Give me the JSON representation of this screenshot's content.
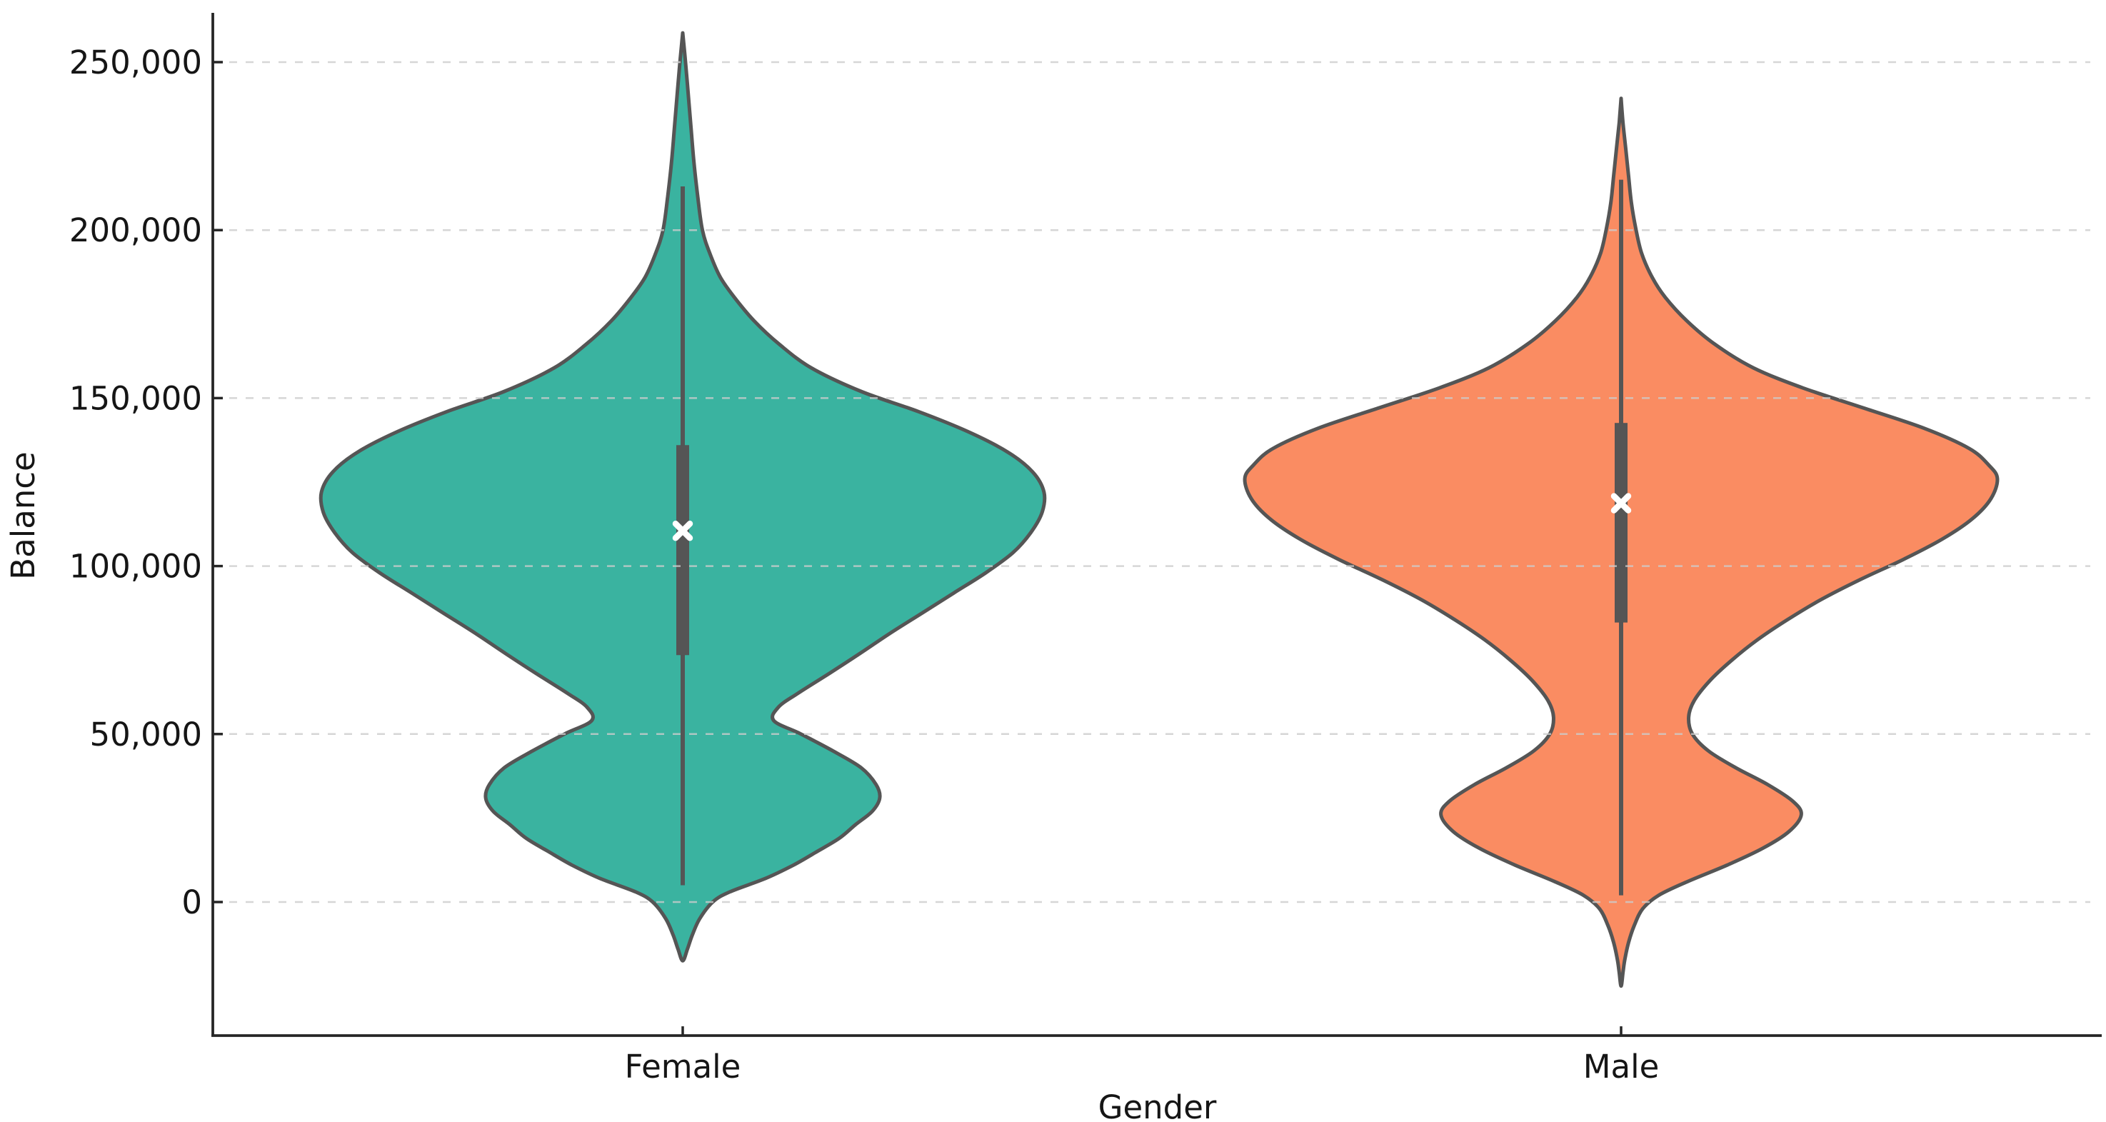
{
  "figure": {
    "background": "#ffffff",
    "axis_color": "#262626",
    "text_color": "#151515",
    "grid_color": "#cccccc"
  },
  "chart_data": {
    "type": "violin",
    "title": "",
    "xlabel": "Gender",
    "ylabel": "Balance",
    "categories": [
      "Female",
      "Male"
    ],
    "ylim": [
      -40000,
      265000
    ],
    "grid": {
      "visible": true,
      "style": "dashed",
      "axis": "y"
    },
    "legend": {
      "visible": false
    },
    "violin_width": 0.8,
    "mean_marker": {
      "shape": "x",
      "color": "#ffffff"
    },
    "y_ticks": [
      {
        "value": 0,
        "label": "0"
      },
      {
        "value": 50000,
        "label": "50,000"
      },
      {
        "value": 100000,
        "label": "100,000"
      },
      {
        "value": 150000,
        "label": "150,000"
      },
      {
        "value": 200000,
        "label": "200,000"
      },
      {
        "value": 250000,
        "label": "250,000"
      }
    ],
    "series": [
      {
        "name": "Female",
        "fill_color": "#3AB3A0",
        "edge_color": "#555555",
        "stats": {
          "mean": 110500,
          "q1": 73500,
          "q3": 136000,
          "whisker_low": 5000,
          "whisker_high": 213000,
          "kde_min": -17500,
          "kde_max": 258700
        },
        "profile": [
          [
            258700,
            0
          ],
          [
            250000,
            0.003
          ],
          [
            240000,
            0.006
          ],
          [
            230000,
            0.009
          ],
          [
            220000,
            0.012
          ],
          [
            210000,
            0.016
          ],
          [
            200000,
            0.021
          ],
          [
            193000,
            0.029
          ],
          [
            186000,
            0.04
          ],
          [
            180000,
            0.055
          ],
          [
            173000,
            0.076
          ],
          [
            166000,
            0.103
          ],
          [
            159000,
            0.137
          ],
          [
            152000,
            0.19
          ],
          [
            146000,
            0.251
          ],
          [
            140000,
            0.304
          ],
          [
            134000,
            0.346
          ],
          [
            128000,
            0.373
          ],
          [
            122000,
            0.385
          ],
          [
            116000,
            0.383
          ],
          [
            110000,
            0.371
          ],
          [
            104000,
            0.352
          ],
          [
            98000,
            0.323
          ],
          [
            92000,
            0.289
          ],
          [
            86000,
            0.255
          ],
          [
            80000,
            0.221
          ],
          [
            74000,
            0.189
          ],
          [
            68000,
            0.156
          ],
          [
            62000,
            0.122
          ],
          [
            58000,
            0.102
          ],
          [
            54000,
            0.097
          ],
          [
            50000,
            0.126
          ],
          [
            45000,
            0.16
          ],
          [
            40000,
            0.19
          ],
          [
            35000,
            0.206
          ],
          [
            31000,
            0.21
          ],
          [
            27000,
            0.202
          ],
          [
            23000,
            0.184
          ],
          [
            19000,
            0.167
          ],
          [
            15000,
            0.143
          ],
          [
            11000,
            0.118
          ],
          [
            7000,
            0.088
          ],
          [
            3000,
            0.05
          ],
          [
            0,
            0.032
          ],
          [
            -5000,
            0.018
          ],
          [
            -10000,
            0.01
          ],
          [
            -14000,
            0.005
          ],
          [
            -17500,
            0
          ]
        ]
      },
      {
        "name": "Male",
        "fill_color": "#FA8C62",
        "edge_color": "#555555",
        "stats": {
          "mean": 118700,
          "q1": 83200,
          "q3": 142600,
          "whisker_low": 2000,
          "whisker_high": 215000,
          "kde_min": -25000,
          "kde_max": 239200
        },
        "profile": [
          [
            239200,
            0
          ],
          [
            232000,
            0.002
          ],
          [
            224000,
            0.005
          ],
          [
            216000,
            0.008
          ],
          [
            208000,
            0.011
          ],
          [
            200000,
            0.016
          ],
          [
            193000,
            0.022
          ],
          [
            186000,
            0.033
          ],
          [
            180000,
            0.047
          ],
          [
            173000,
            0.07
          ],
          [
            166000,
            0.1
          ],
          [
            159000,
            0.141
          ],
          [
            153000,
            0.194
          ],
          [
            147000,
            0.259
          ],
          [
            141000,
            0.323
          ],
          [
            135000,
            0.371
          ],
          [
            130000,
            0.392
          ],
          [
            126000,
            0.401
          ],
          [
            120000,
            0.394
          ],
          [
            114000,
            0.374
          ],
          [
            108000,
            0.342
          ],
          [
            102000,
            0.301
          ],
          [
            96000,
            0.255
          ],
          [
            90000,
            0.213
          ],
          [
            84000,
            0.177
          ],
          [
            78000,
            0.145
          ],
          [
            72000,
            0.118
          ],
          [
            66000,
            0.095
          ],
          [
            60000,
            0.078
          ],
          [
            55000,
            0.072
          ],
          [
            50000,
            0.076
          ],
          [
            45000,
            0.093
          ],
          [
            40000,
            0.122
          ],
          [
            35000,
            0.156
          ],
          [
            30000,
            0.183
          ],
          [
            26000,
            0.192
          ],
          [
            21000,
            0.179
          ],
          [
            16000,
            0.151
          ],
          [
            11000,
            0.113
          ],
          [
            6000,
            0.07
          ],
          [
            2000,
            0.04
          ],
          [
            -2000,
            0.023
          ],
          [
            -7000,
            0.014
          ],
          [
            -12000,
            0.008
          ],
          [
            -17000,
            0.004
          ],
          [
            -21000,
            0.002
          ],
          [
            -25000,
            0
          ]
        ]
      }
    ]
  }
}
